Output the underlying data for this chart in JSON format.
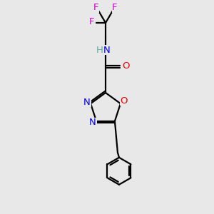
{
  "bg_color": "#e8e8e8",
  "atom_colors": {
    "C": "#000000",
    "H": "#5aada0",
    "N": "#0000ee",
    "O": "#ee0000",
    "F": "#cc00cc"
  },
  "bond_color": "#000000",
  "figsize": [
    3.0,
    3.0
  ],
  "dpi": 100,
  "bond_lw": 1.6,
  "font_size": 9.5
}
